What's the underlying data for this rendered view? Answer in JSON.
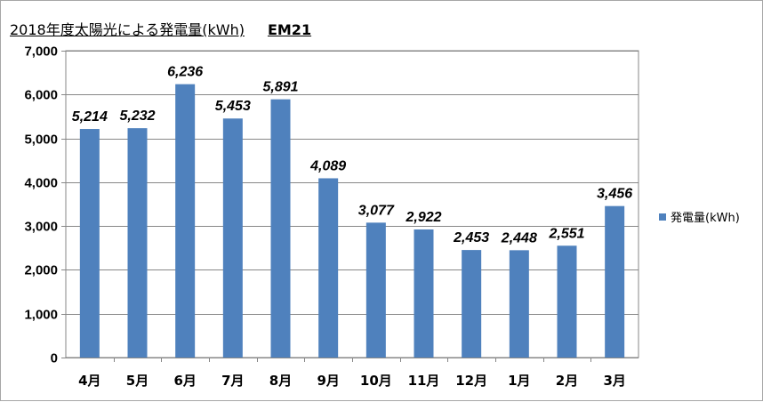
{
  "title": "2018年度太陽光による発電量(kWh)",
  "title_suffix": "EM21",
  "colors": {
    "bar": "#4f81bd",
    "grid": "#878787",
    "axis": "#878787"
  },
  "chart_data": {
    "type": "bar",
    "categories": [
      "4月",
      "5月",
      "6月",
      "7月",
      "8月",
      "9月",
      "10月",
      "11月",
      "12月",
      "1月",
      "2月",
      "3月"
    ],
    "series": [
      {
        "name": "発電量(kWh)",
        "values": [
          5214,
          5232,
          6236,
          5453,
          5891,
          4089,
          3077,
          2922,
          2453,
          2448,
          2551,
          3456
        ]
      }
    ],
    "data_labels": [
      "5,214",
      "5,232",
      "6,236",
      "5,453",
      "5,891",
      "4,089",
      "3,077",
      "2,922",
      "2,453",
      "2,448",
      "2,551",
      "3,456"
    ],
    "ylim": [
      0,
      7000
    ],
    "yticks": [
      0,
      1000,
      2000,
      3000,
      4000,
      5000,
      6000,
      7000
    ],
    "ytick_labels": [
      "0",
      "1,000",
      "2,000",
      "3,000",
      "4,000",
      "5,000",
      "6,000",
      "7,000"
    ],
    "grid": true,
    "legend": "right"
  }
}
